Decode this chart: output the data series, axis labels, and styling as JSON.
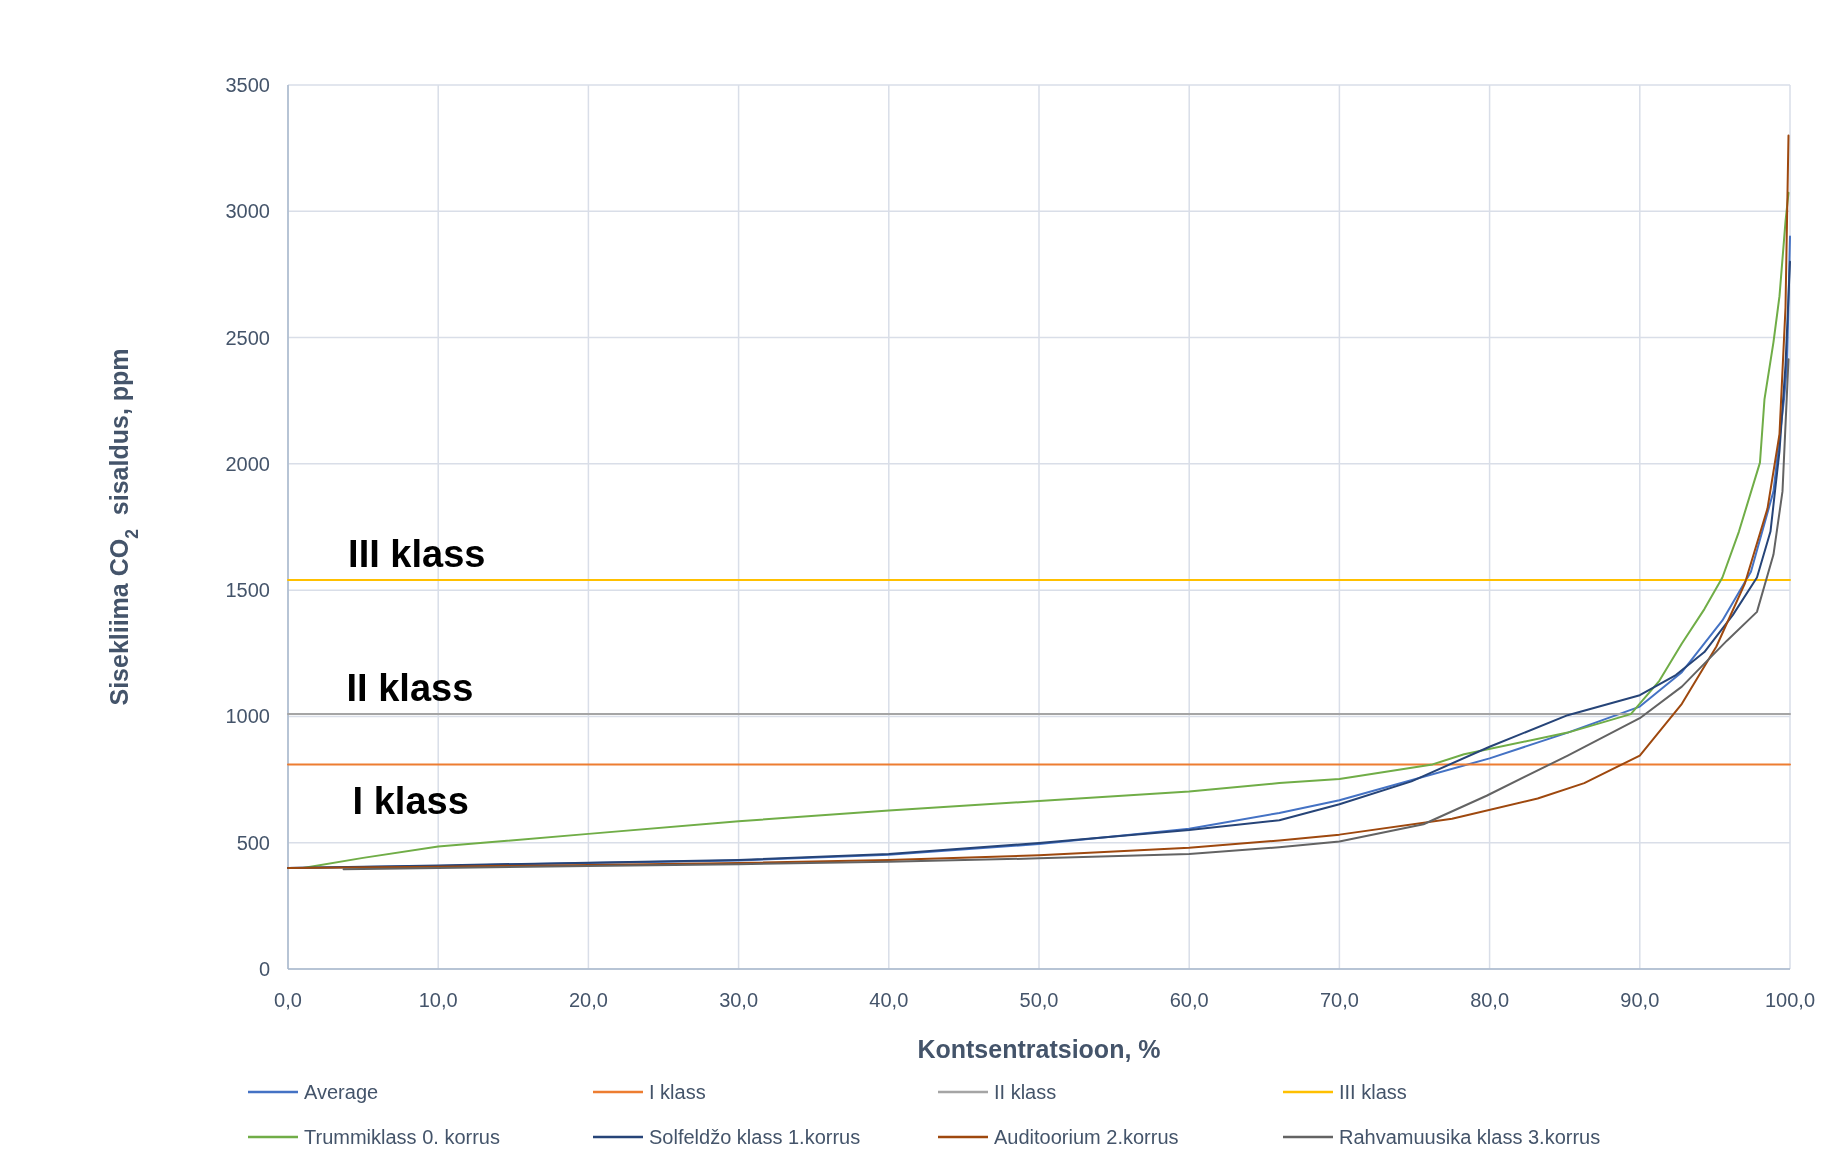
{
  "chart_data": {
    "type": "line",
    "xlabel": "Kontsentratsioon, %",
    "ylabel": "Sisekliima CO$_{2}$  sisaldus, ppm",
    "xlim": [
      0,
      100
    ],
    "ylim": [
      0,
      3500
    ],
    "xticks": [
      {
        "value": 0,
        "label": "0,0"
      },
      {
        "value": 10,
        "label": "10,0"
      },
      {
        "value": 20,
        "label": "20,0"
      },
      {
        "value": 30,
        "label": "30,0"
      },
      {
        "value": 40,
        "label": "40,0"
      },
      {
        "value": 50,
        "label": "50,0"
      },
      {
        "value": 60,
        "label": "60,0"
      },
      {
        "value": 70,
        "label": "70,0"
      },
      {
        "value": 80,
        "label": "80,0"
      },
      {
        "value": 90,
        "label": "90,0"
      },
      {
        "value": 100,
        "label": "100,0"
      }
    ],
    "yticks": [
      0,
      500,
      1000,
      1500,
      2000,
      2500,
      3000,
      3500
    ],
    "grid": true,
    "legend": "bottom",
    "series": [
      {
        "name": "Average",
        "color": "#4472c4",
        "x": [
          0,
          10,
          20,
          30,
          40,
          50,
          60,
          66,
          70,
          80,
          85.2,
          90,
          92.8,
          95.5,
          97.4,
          98.9,
          99.6,
          99.8,
          100
        ],
        "values": [
          400,
          408,
          420,
          430,
          452,
          495,
          555,
          618,
          668,
          834,
          936,
          1039,
          1175,
          1380,
          1573,
          1891,
          2255,
          2390,
          2900
        ]
      },
      {
        "name": "I klass",
        "color": "#ed7d31",
        "x": [
          0,
          100
        ],
        "values": [
          810,
          810
        ]
      },
      {
        "name": "II klass",
        "color": "#a5a5a5",
        "x": [
          0,
          100
        ],
        "values": [
          1010,
          1010
        ]
      },
      {
        "name": "III klass",
        "color": "#ffc000",
        "x": [
          0,
          100
        ],
        "values": [
          1540,
          1540
        ]
      },
      {
        "name": "Trummiklass 0. korrus",
        "color": "#70ad47",
        "x": [
          1,
          5,
          10,
          20,
          30,
          40,
          50,
          60,
          66,
          70,
          76.2,
          78.3,
          85.2,
          89.4,
          91.3,
          92.8,
          94.3,
          95.5,
          96.6,
          98,
          98.3,
          98.9,
          99.3,
          99.7,
          99.9
        ],
        "values": [
          400,
          440,
          485,
          535,
          585,
          628,
          665,
          703,
          736,
          752,
          810,
          850,
          936,
          1009,
          1141,
          1289,
          1425,
          1550,
          1732,
          2005,
          2255,
          2482,
          2664,
          2959,
          3073
        ]
      },
      {
        "name": "Solfeldžo klass 1.korrus",
        "color": "#264478",
        "x": [
          0,
          10,
          20,
          30,
          40,
          50,
          60,
          66,
          70,
          74.8,
          80,
          85.2,
          90,
          92.4,
          94.3,
          96.2,
          97.8,
          98.7,
          99.3,
          99.7,
          100
        ],
        "values": [
          400,
          410,
          421,
          432,
          455,
          499,
          550,
          589,
          652,
          743,
          880,
          1005,
          1084,
          1164,
          1255,
          1402,
          1550,
          1732,
          2050,
          2390,
          2800
        ]
      },
      {
        "name": "Auditoorium 2.korrus",
        "color": "#9e480e",
        "x": [
          0,
          10,
          20,
          30,
          40,
          50,
          60,
          66,
          70,
          77.5,
          83.2,
          86.3,
          90,
          92.8,
          95.1,
          97,
          98.5,
          99.3,
          99.7,
          99.9
        ],
        "values": [
          400,
          405,
          412,
          420,
          432,
          450,
          480,
          509,
          532,
          595,
          675,
          736,
          845,
          1050,
          1277,
          1527,
          1823,
          2118,
          2618,
          3300
        ]
      },
      {
        "name": "Rahvamuusika klass 3.korrus",
        "color": "#636363",
        "x": [
          3.7,
          10,
          20,
          30,
          40,
          50,
          60,
          66,
          70,
          75.6,
          79.8,
          85.2,
          90,
          92.8,
          95.8,
          97.8,
          98.9,
          99.5,
          99.9
        ],
        "values": [
          395,
          400,
          408,
          415,
          425,
          438,
          455,
          482,
          505,
          573,
          686,
          845,
          993,
          1118,
          1300,
          1414,
          1641,
          1891,
          2414
        ]
      }
    ],
    "annotations": [
      {
        "text": "III klass",
        "x": 4,
        "y": 1540
      },
      {
        "text": "II klass",
        "x": 3.9,
        "y": 1010
      },
      {
        "text": "I klass",
        "x": 4.3,
        "y": 810
      }
    ]
  }
}
